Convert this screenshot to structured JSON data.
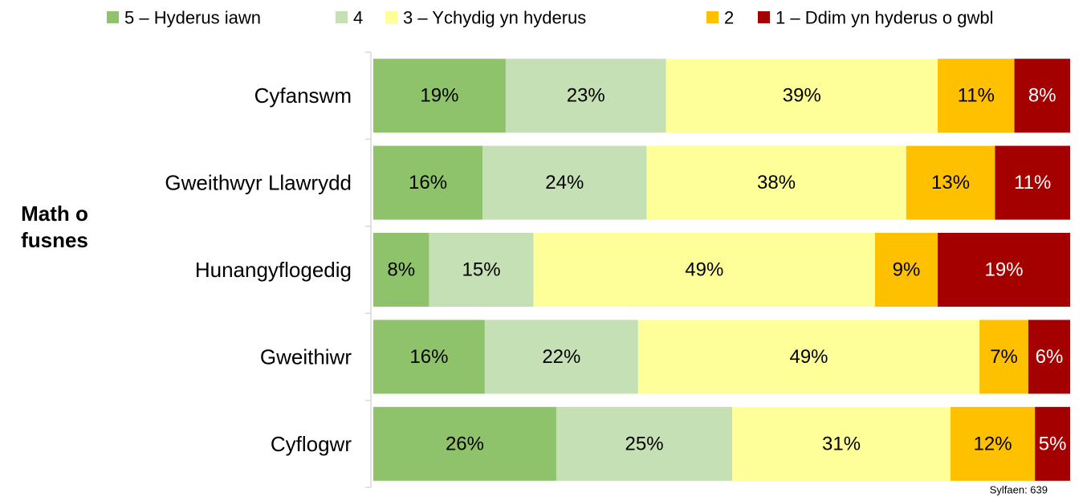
{
  "chart_data": {
    "type": "bar",
    "orientation": "horizontal",
    "stacked": true,
    "y_label": "Math o fusnes",
    "note": "Sylfaen: 639",
    "categories": [
      "Cyfanswm",
      "Gweithwyr Llawrydd",
      "Hunangyflogedig",
      "Gweithiwr",
      "Cyflogwr"
    ],
    "series": [
      {
        "name": "5 – Hyderus iawn",
        "color": "#8fc36b",
        "values": [
          19,
          16,
          8,
          16,
          26
        ],
        "value_labels": [
          "19%",
          "16%",
          "8%",
          "16%",
          "26%"
        ]
      },
      {
        "name": "4",
        "color": "#c5e0b4",
        "values": [
          23,
          24,
          15,
          22,
          25
        ],
        "value_labels": [
          "23%",
          "24%",
          "15%",
          "22%",
          "25%"
        ]
      },
      {
        "name": "3 – Ychydig yn hyderus",
        "color": "#ffff99",
        "values": [
          39,
          38,
          49,
          49,
          31
        ],
        "value_labels": [
          "39%",
          "38%",
          "49%",
          "49%",
          "31%"
        ]
      },
      {
        "name": "2",
        "color": "#ffc000",
        "values": [
          11,
          13,
          9,
          7,
          12
        ],
        "value_labels": [
          "11%",
          "13%",
          "9%",
          "7%",
          "12%"
        ]
      },
      {
        "name": "1 – Ddim yn hyderus o gwbl",
        "color": "#a50000",
        "values": [
          8,
          11,
          19,
          6,
          5
        ],
        "value_labels": [
          "8%",
          "11%",
          "19%",
          "6%",
          "5%"
        ]
      }
    ],
    "legend": "top"
  }
}
